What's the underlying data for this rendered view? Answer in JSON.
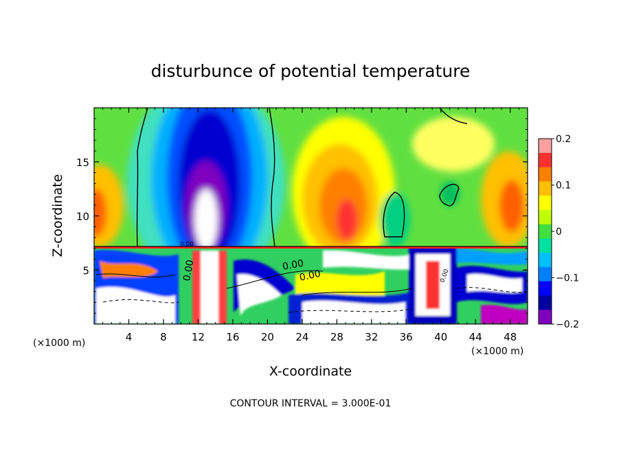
{
  "chart_data": {
    "type": "heatmap",
    "title": "disturbunce of potential temperature",
    "xlabel": "X-coordinate",
    "ylabel": "Z-coordinate",
    "x_unit_left": "(×1000 m)",
    "x_unit_right": "(×1000 m)",
    "xlim": [
      0,
      50
    ],
    "ylim": [
      0,
      20
    ],
    "xticks": [
      4,
      8,
      12,
      16,
      20,
      24,
      28,
      32,
      36,
      40,
      44,
      48
    ],
    "yticks": [
      5,
      10,
      15
    ],
    "colorbar": {
      "min": -0.2,
      "max": 0.2,
      "ticks": [
        0.2,
        0.1,
        0,
        -0.1,
        -0.2
      ],
      "tick_labels": [
        "0.2",
        "0.1",
        "0",
        "−0.1",
        "−0.2"
      ],
      "colors": [
        "#ffa0a0",
        "#ff3030",
        "#ff8000",
        "#ffc000",
        "#ffff00",
        "#c0ff00",
        "#40e040",
        "#00e0a0",
        "#00c0ff",
        "#0080ff",
        "#0000ff",
        "#0000a0",
        "#8000c0"
      ]
    },
    "contour_labels": [
      "0.00",
      "0.00",
      "0.00",
      "0.00",
      "0.00"
    ],
    "footer": "CONTOUR INTERVAL = 3.000E-01"
  }
}
